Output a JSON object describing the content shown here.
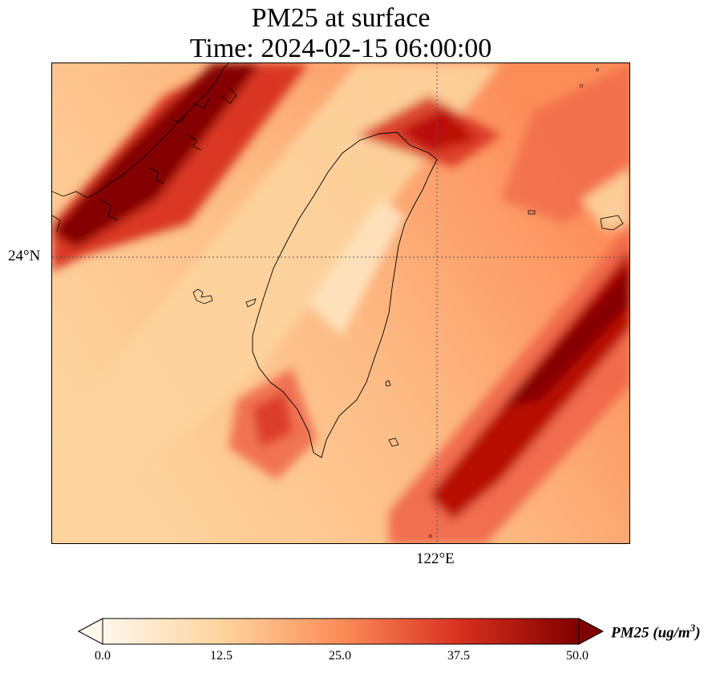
{
  "title": {
    "line1": "PM25 at surface",
    "line2": "Time: 2024-02-15 06:00:00"
  },
  "map": {
    "region": "Taiwan Strait",
    "gridlines": {
      "style": "dotted",
      "lat_label": "24°N",
      "lon_label": "122°E"
    },
    "colormap": "OrRd",
    "colors": {
      "low": "#fff7ec",
      "light": "#fdd49e",
      "mid": "#fc8d59",
      "high": "#d7301f",
      "max": "#7f0000",
      "coastline": "#000000",
      "gridline": "#555555"
    }
  },
  "colorbar": {
    "ticks": [
      "0.0",
      "12.5",
      "25.0",
      "37.5",
      "50.0"
    ],
    "label_main": "PM25 (ug/m",
    "label_sup": "3",
    "label_close": ")",
    "extend": "both"
  }
}
